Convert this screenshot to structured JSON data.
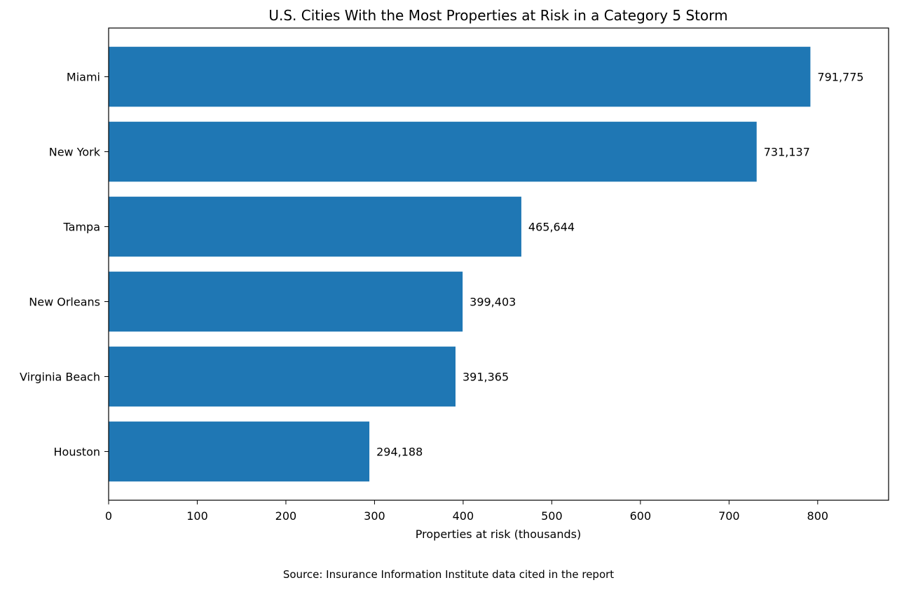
{
  "chart_data": {
    "type": "bar",
    "orientation": "horizontal",
    "title": "U.S. Cities With the Most Properties at Risk in a Category 5 Storm",
    "xlabel": "Properties at risk (thousands)",
    "ylabel": "",
    "categories": [
      "Miami",
      "New York",
      "Tampa",
      "New Orleans",
      "Virginia Beach",
      "Houston"
    ],
    "values": [
      791.775,
      731.137,
      465.644,
      399.403,
      391.365,
      294.188
    ],
    "data_labels": [
      "791,775",
      "731,137",
      "465,644",
      "399,403",
      "391,365",
      "294,188"
    ],
    "xlim": [
      0,
      880
    ],
    "xticks": [
      0,
      100,
      200,
      300,
      400,
      500,
      600,
      700,
      800
    ],
    "xtick_labels": [
      "0",
      "100",
      "200",
      "300",
      "400",
      "500",
      "600",
      "700",
      "800"
    ],
    "grid": false,
    "bar_color": "#1f77b4"
  },
  "source_note": "Source: Insurance Information Institute data cited in the report"
}
